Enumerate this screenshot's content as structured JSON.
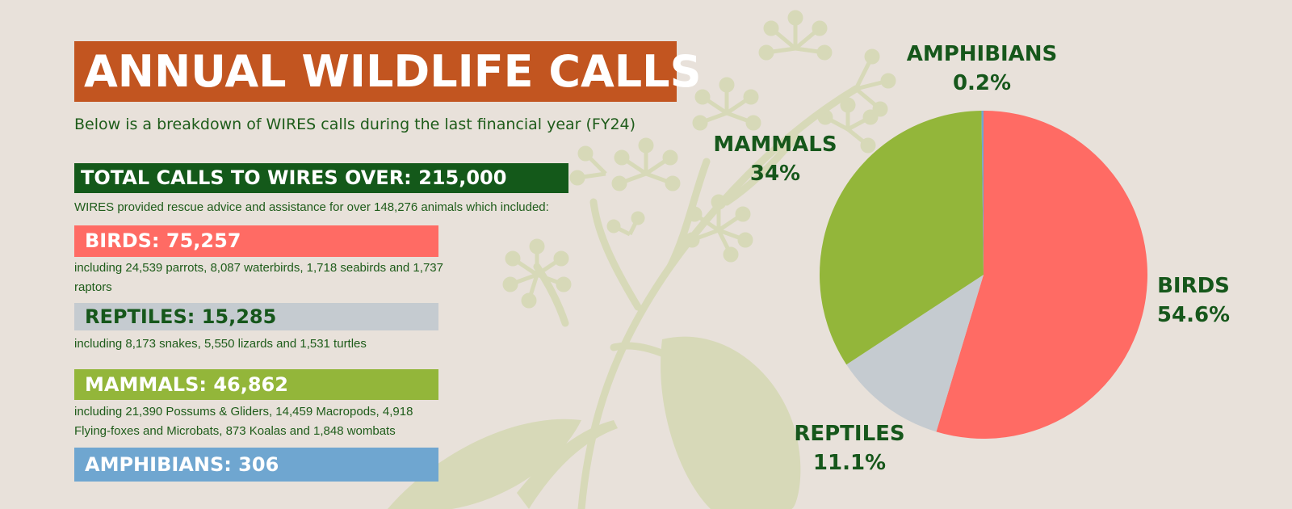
{
  "header": {
    "title": "ANNUAL WILDLIFE CALLS",
    "subtitle": "Below is a breakdown of WIRES calls during the last financial year (FY24)"
  },
  "total": {
    "label": "TOTAL CALLS TO WIRES OVER: 215,000",
    "intro": "WIRES provided rescue advice and assistance for over 148,276 animals which included:"
  },
  "categories": [
    {
      "label": "BIRDS: 75,257",
      "detail": "including 24,539 parrots, 8,087 waterbirds, 1,718 seabirds and 1,737 raptors",
      "color": "#ff6b64",
      "text_color": "#ffffff"
    },
    {
      "label": "REPTILES: 15,285",
      "detail": "including 8,173 snakes, 5,550 lizards and 1,531 turtles",
      "color": "#c5cbd0",
      "text_color": "#16571b"
    },
    {
      "label": "MAMMALS: 46,862",
      "detail": "including 21,390 Possums & Gliders, 14,459 Macropods, 4,918 Flying-foxes and Microbats, 873 Koalas and 1,848 wombats",
      "color": "#93b63a",
      "text_color": "#ffffff"
    },
    {
      "label": "AMPHIBIANS: 306",
      "detail": "",
      "color": "#6fa6d0",
      "text_color": "#ffffff"
    }
  ],
  "colors": {
    "background": "#e8e1da",
    "title_bg": "#c25520",
    "total_bg": "#14591a",
    "text_green": "#16571b",
    "plant": "#d7d9b8"
  },
  "chart_data": {
    "type": "pie",
    "title": "",
    "start_angle_deg": 0,
    "direction": "clockwise",
    "slices": [
      {
        "name": "BIRDS",
        "percent_label": "54.6%",
        "value": 54.6,
        "color": "#ff6b64"
      },
      {
        "name": "REPTILES",
        "percent_label": "11.1%",
        "value": 11.1,
        "color": "#c5cbd0"
      },
      {
        "name": "MAMMALS",
        "percent_label": "34%",
        "value": 34.0,
        "color": "#93b63a"
      },
      {
        "name": "AMPHIBIANS",
        "percent_label": "0.2%",
        "value": 0.2,
        "color": "#6fa6d0"
      }
    ]
  }
}
